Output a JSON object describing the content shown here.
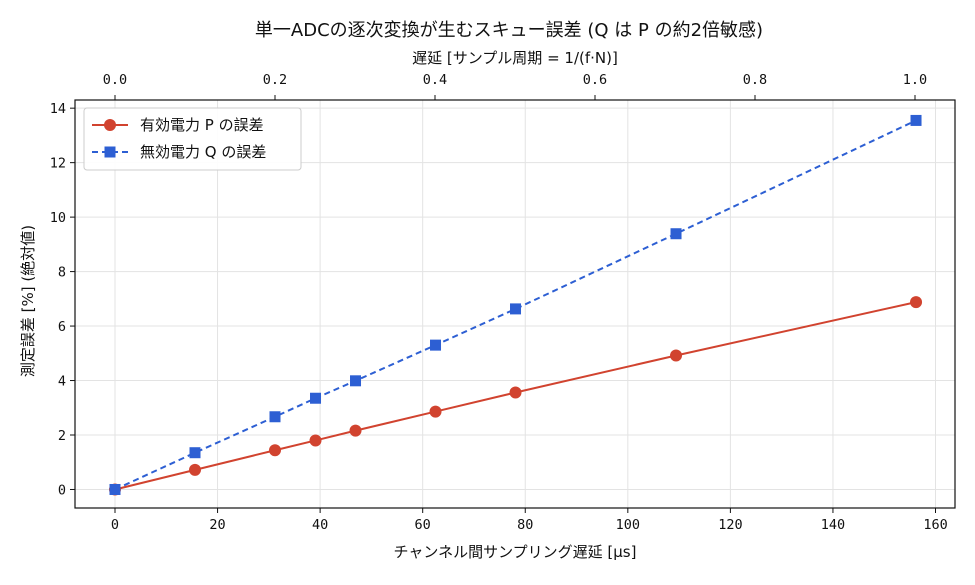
{
  "chart_data": {
    "type": "line",
    "title": "単一ADCの逐次変換が生むスキュー誤差 (Q は P の約2倍敏感)",
    "xlabel": "チャンネル間サンプリング遅延 [μs]",
    "ylabel": "測定誤差 [%] (絶対値)",
    "secondary_xlabel": "遅延 [サンプル周期 = 1/(f·N)]",
    "xlim": [
      -7.8,
      163.8
    ],
    "ylim": [
      -0.68,
      14.3
    ],
    "xticks": [
      0,
      20,
      40,
      60,
      80,
      100,
      120,
      140,
      160
    ],
    "yticks": [
      0,
      2,
      4,
      6,
      8,
      10,
      12,
      14
    ],
    "secondary_xlim": [
      -0.05,
      1.05
    ],
    "secondary_xticks": [
      "0.0",
      "0.2",
      "0.4",
      "0.6",
      "0.8",
      "1.0"
    ],
    "grid": true,
    "legend_position": "top-left",
    "x": [
      0,
      15.6,
      31.2,
      39.1,
      46.9,
      62.5,
      78.1,
      109.4,
      156.2
    ],
    "series": [
      {
        "name": "有効電力 P の誤差",
        "values": [
          0,
          0.72,
          1.44,
          1.8,
          2.16,
          2.86,
          3.56,
          4.92,
          6.88
        ],
        "color": "#d1432f",
        "marker": "circle",
        "linestyle": "solid"
      },
      {
        "name": "無効電力 Q の誤差",
        "values": [
          0,
          1.35,
          2.67,
          3.35,
          3.99,
          5.3,
          6.63,
          9.39,
          13.55
        ],
        "color": "#2d5fd3",
        "marker": "square",
        "linestyle": "dashed"
      }
    ]
  }
}
